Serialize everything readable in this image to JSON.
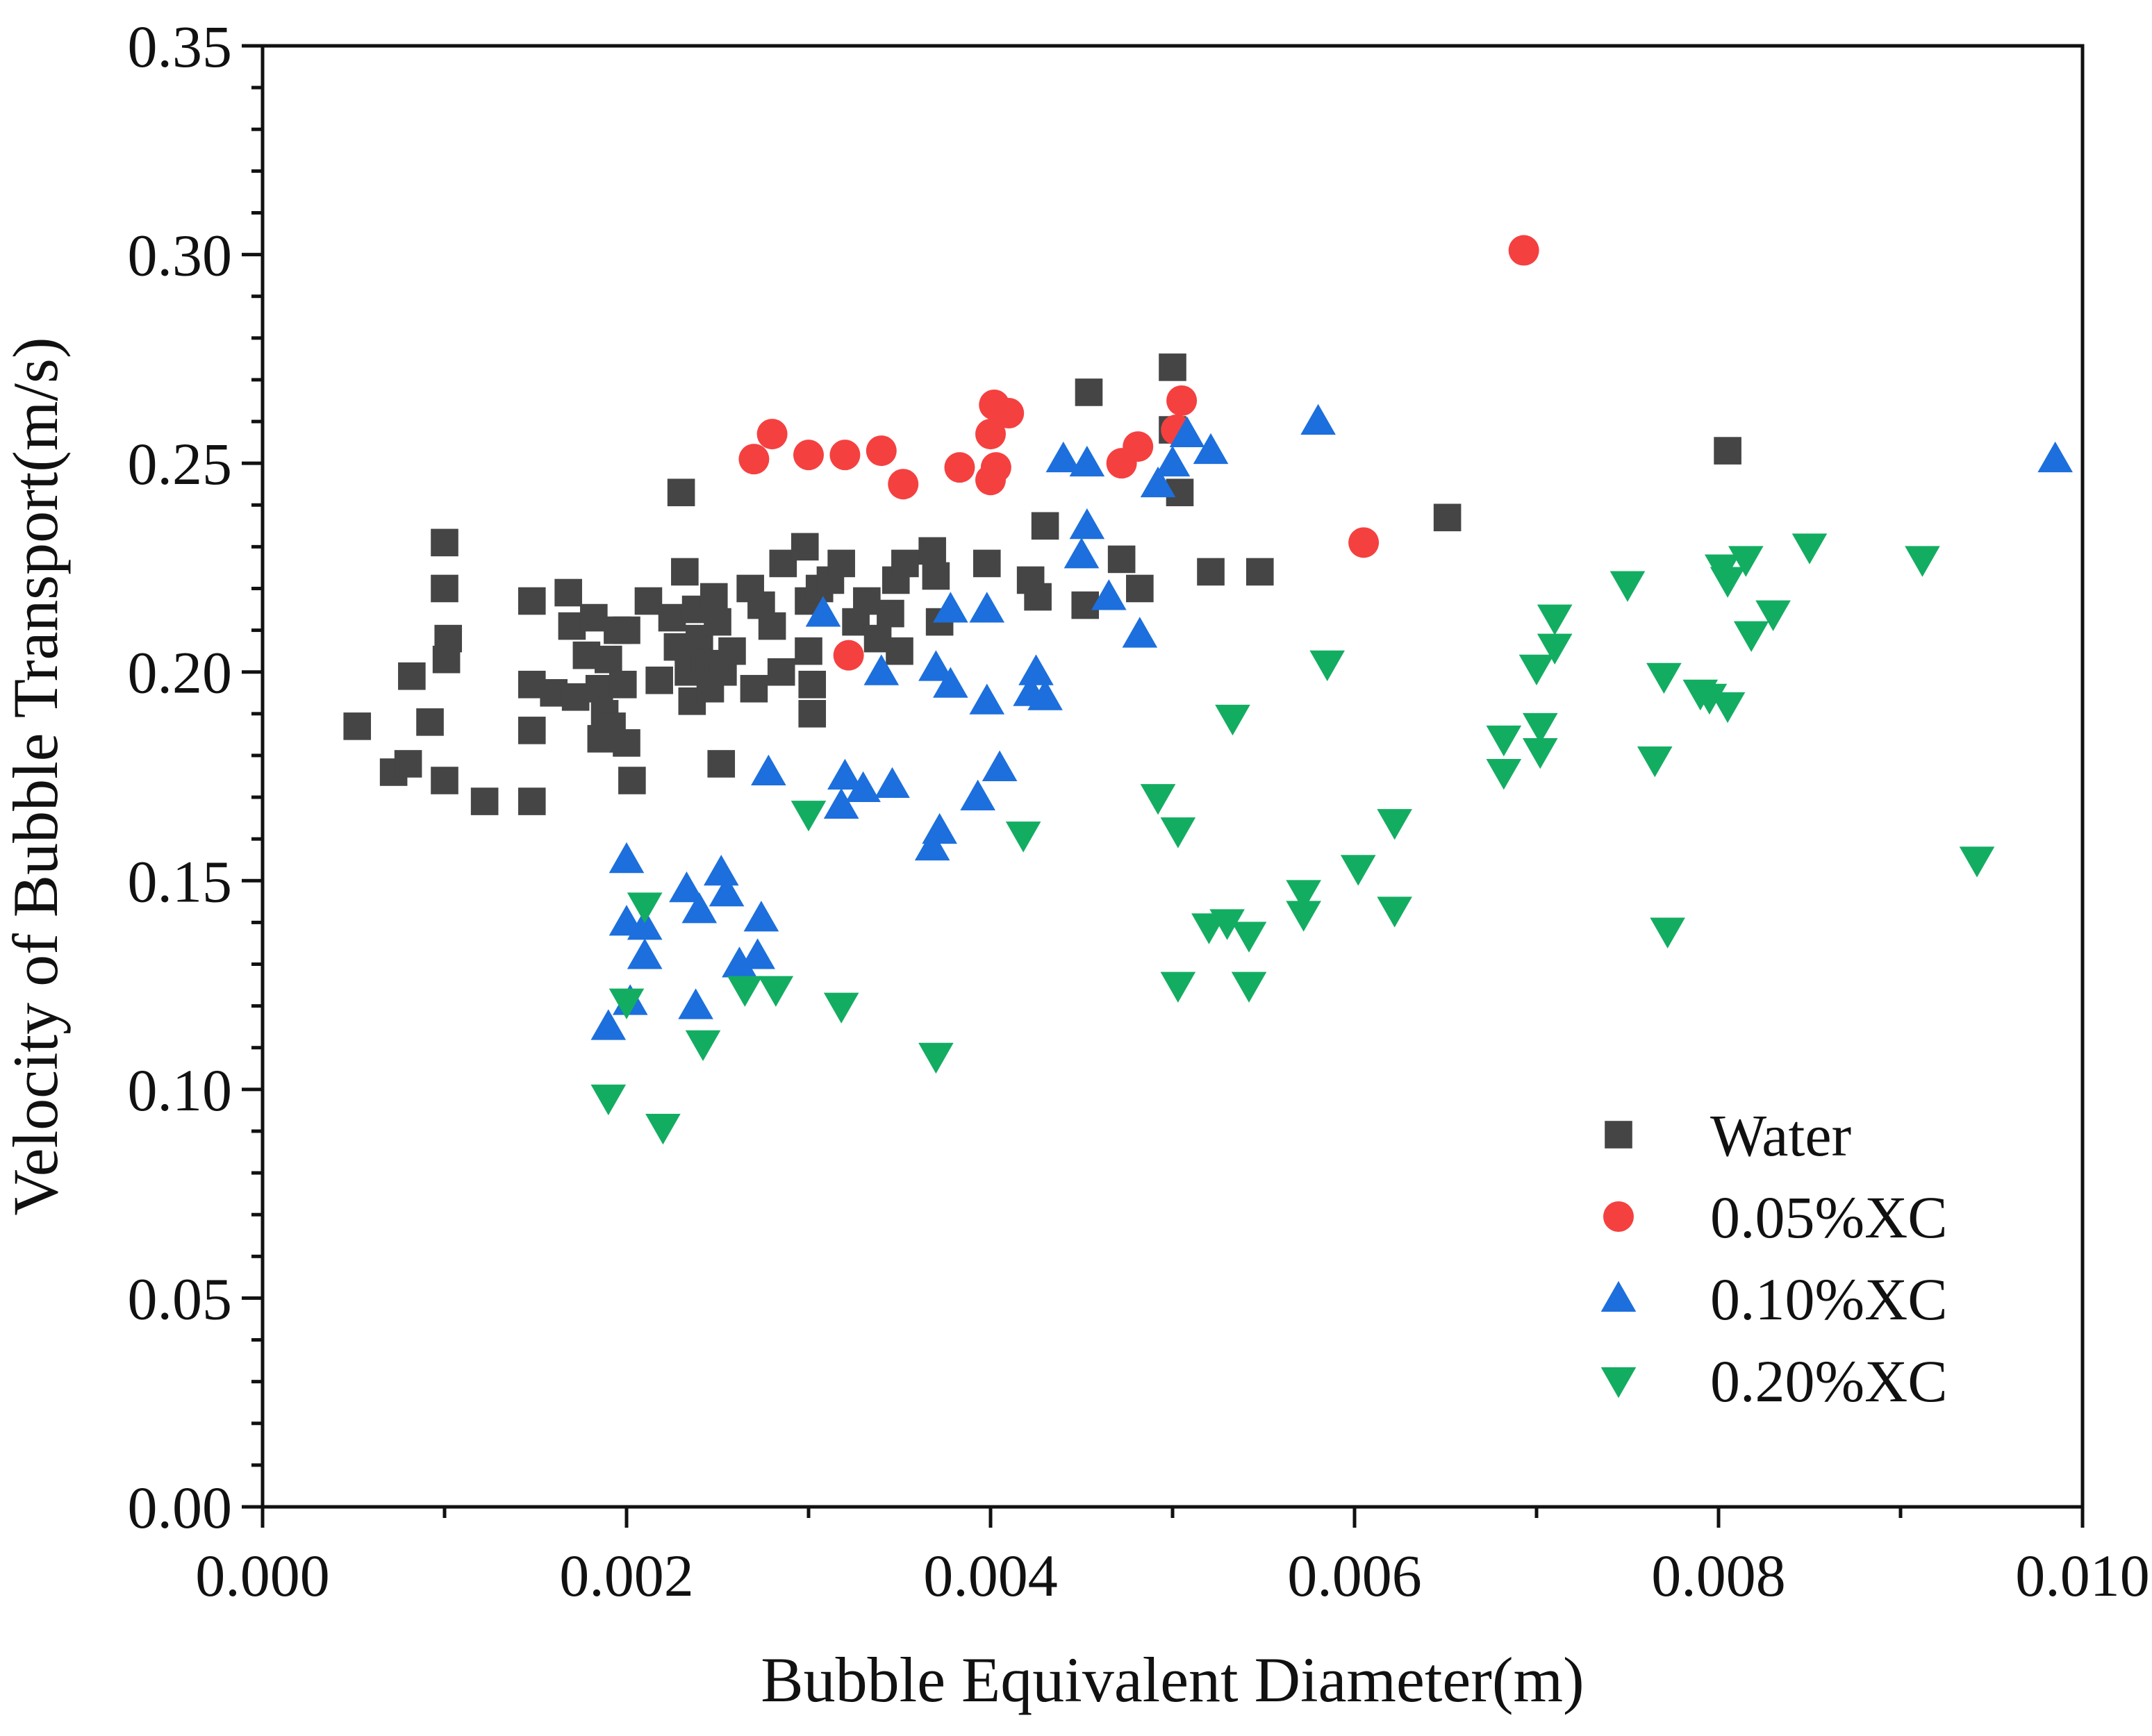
{
  "chart_data": {
    "type": "scatter",
    "xlabel": "Bubble Equivalent Diameter(m)",
    "ylabel": "Velocity of Bubble Transport(m/s)",
    "xlim": [
      0.0,
      0.01
    ],
    "ylim": [
      0.0,
      0.35
    ],
    "x_ticks": [
      "0.000",
      "0.002",
      "0.004",
      "0.006",
      "0.008",
      "0.010"
    ],
    "x_tick_values": [
      0.0,
      0.002,
      0.004,
      0.006,
      0.008,
      0.01
    ],
    "y_ticks": [
      "0.00",
      "0.05",
      "0.10",
      "0.15",
      "0.20",
      "0.25",
      "0.30",
      "0.35"
    ],
    "y_tick_values": [
      0.0,
      0.05,
      0.1,
      0.15,
      0.2,
      0.25,
      0.3,
      0.35
    ],
    "grid": false,
    "legend_position": "bottom-right",
    "series": [
      {
        "name": "Water",
        "marker": "square",
        "color": "#454545",
        "points": [
          [
            0.00052,
            0.187
          ],
          [
            0.00072,
            0.176
          ],
          [
            0.0008,
            0.178
          ],
          [
            0.00082,
            0.199
          ],
          [
            0.00092,
            0.188
          ],
          [
            0.001,
            0.231
          ],
          [
            0.001,
            0.22
          ],
          [
            0.00102,
            0.208
          ],
          [
            0.00101,
            0.203
          ],
          [
            0.001,
            0.174
          ],
          [
            0.00122,
            0.169
          ],
          [
            0.00148,
            0.169
          ],
          [
            0.00148,
            0.217
          ],
          [
            0.00148,
            0.197
          ],
          [
            0.00148,
            0.186
          ],
          [
            0.0016,
            0.195
          ],
          [
            0.00168,
            0.219
          ],
          [
            0.0017,
            0.211
          ],
          [
            0.00172,
            0.194
          ],
          [
            0.00178,
            0.204
          ],
          [
            0.00182,
            0.213
          ],
          [
            0.00185,
            0.196
          ],
          [
            0.00186,
            0.184
          ],
          [
            0.00188,
            0.19
          ],
          [
            0.0019,
            0.203
          ],
          [
            0.00192,
            0.187
          ],
          [
            0.00195,
            0.21
          ],
          [
            0.00198,
            0.197
          ],
          [
            0.002,
            0.183
          ],
          [
            0.002,
            0.21
          ],
          [
            0.00203,
            0.174
          ],
          [
            0.00212,
            0.217
          ],
          [
            0.00218,
            0.198
          ],
          [
            0.00225,
            0.213
          ],
          [
            0.00228,
            0.206
          ],
          [
            0.0023,
            0.243
          ],
          [
            0.00232,
            0.224
          ],
          [
            0.00234,
            0.2
          ],
          [
            0.00236,
            0.193
          ],
          [
            0.00238,
            0.215
          ],
          [
            0.0024,
            0.208
          ],
          [
            0.00243,
            0.202
          ],
          [
            0.00246,
            0.196
          ],
          [
            0.00248,
            0.218
          ],
          [
            0.0025,
            0.212
          ],
          [
            0.00252,
            0.178
          ],
          [
            0.00253,
            0.2
          ],
          [
            0.00258,
            0.205
          ],
          [
            0.00268,
            0.22
          ],
          [
            0.0027,
            0.196
          ],
          [
            0.00274,
            0.216
          ],
          [
            0.0028,
            0.211
          ],
          [
            0.00285,
            0.2
          ],
          [
            0.00286,
            0.226
          ],
          [
            0.00298,
            0.23
          ],
          [
            0.003,
            0.217
          ],
          [
            0.003,
            0.205
          ],
          [
            0.00302,
            0.197
          ],
          [
            0.00302,
            0.19
          ],
          [
            0.00306,
            0.22
          ],
          [
            0.00312,
            0.222
          ],
          [
            0.00318,
            0.226
          ],
          [
            0.00326,
            0.212
          ],
          [
            0.00332,
            0.217
          ],
          [
            0.00338,
            0.208
          ],
          [
            0.00345,
            0.214
          ],
          [
            0.00348,
            0.222
          ],
          [
            0.0035,
            0.205
          ],
          [
            0.00353,
            0.226
          ],
          [
            0.00368,
            0.229
          ],
          [
            0.0037,
            0.223
          ],
          [
            0.00372,
            0.212
          ],
          [
            0.00398,
            0.226
          ],
          [
            0.00422,
            0.222
          ],
          [
            0.00426,
            0.218
          ],
          [
            0.0043,
            0.235
          ],
          [
            0.00452,
            0.216
          ],
          [
            0.00454,
            0.267
          ],
          [
            0.00472,
            0.227
          ],
          [
            0.00482,
            0.22
          ],
          [
            0.005,
            0.273
          ],
          [
            0.005,
            0.258
          ],
          [
            0.00504,
            0.243
          ],
          [
            0.00521,
            0.224
          ],
          [
            0.00548,
            0.224
          ],
          [
            0.00651,
            0.237
          ],
          [
            0.00805,
            0.253
          ]
        ]
      },
      {
        "name": "0.05%XC",
        "marker": "circle",
        "color": "#f54040",
        "points": [
          [
            0.0027,
            0.251
          ],
          [
            0.0028,
            0.257
          ],
          [
            0.003,
            0.252
          ],
          [
            0.0032,
            0.252
          ],
          [
            0.0034,
            0.253
          ],
          [
            0.00352,
            0.245
          ],
          [
            0.00383,
            0.249
          ],
          [
            0.004,
            0.257
          ],
          [
            0.004,
            0.246
          ],
          [
            0.00403,
            0.249
          ],
          [
            0.00402,
            0.264
          ],
          [
            0.0041,
            0.262
          ],
          [
            0.00472,
            0.25
          ],
          [
            0.00481,
            0.254
          ],
          [
            0.00502,
            0.258
          ],
          [
            0.00505,
            0.265
          ],
          [
            0.00322,
            0.204
          ],
          [
            0.00605,
            0.231
          ],
          [
            0.00693,
            0.301
          ]
        ]
      },
      {
        "name": "0.10%XC",
        "marker": "triangle-up",
        "color": "#1c6fdc",
        "points": [
          [
            0.0019,
            0.115
          ],
          [
            0.002,
            0.155
          ],
          [
            0.002,
            0.14
          ],
          [
            0.00202,
            0.121
          ],
          [
            0.0021,
            0.132
          ],
          [
            0.0021,
            0.139
          ],
          [
            0.00233,
            0.148
          ],
          [
            0.00238,
            0.12
          ],
          [
            0.0024,
            0.143
          ],
          [
            0.00252,
            0.152
          ],
          [
            0.00255,
            0.147
          ],
          [
            0.00262,
            0.13
          ],
          [
            0.00272,
            0.132
          ],
          [
            0.00274,
            0.141
          ],
          [
            0.00278,
            0.176
          ],
          [
            0.00308,
            0.214
          ],
          [
            0.00318,
            0.168
          ],
          [
            0.0032,
            0.175
          ],
          [
            0.0033,
            0.172
          ],
          [
            0.0034,
            0.2
          ],
          [
            0.00346,
            0.173
          ],
          [
            0.00368,
            0.158
          ],
          [
            0.00372,
            0.162
          ],
          [
            0.0037,
            0.201
          ],
          [
            0.00378,
            0.197
          ],
          [
            0.00378,
            0.215
          ],
          [
            0.00393,
            0.17
          ],
          [
            0.00398,
            0.193
          ],
          [
            0.00398,
            0.215
          ],
          [
            0.00405,
            0.177
          ],
          [
            0.00422,
            0.195
          ],
          [
            0.00425,
            0.2
          ],
          [
            0.0043,
            0.194
          ],
          [
            0.0044,
            0.251
          ],
          [
            0.0045,
            0.228
          ],
          [
            0.00453,
            0.235
          ],
          [
            0.00453,
            0.25
          ],
          [
            0.00465,
            0.218
          ],
          [
            0.00482,
            0.209
          ],
          [
            0.00492,
            0.245
          ],
          [
            0.005,
            0.25
          ],
          [
            0.00508,
            0.257
          ],
          [
            0.00521,
            0.253
          ],
          [
            0.0058,
            0.26
          ],
          [
            0.00985,
            0.251
          ]
        ]
      },
      {
        "name": "0.20%XC",
        "marker": "triangle-down",
        "color": "#13ad62",
        "points": [
          [
            0.0019,
            0.098
          ],
          [
            0.002,
            0.121
          ],
          [
            0.0021,
            0.144
          ],
          [
            0.0022,
            0.091
          ],
          [
            0.00242,
            0.111
          ],
          [
            0.00265,
            0.124
          ],
          [
            0.00282,
            0.124
          ],
          [
            0.003,
            0.166
          ],
          [
            0.00318,
            0.12
          ],
          [
            0.0037,
            0.108
          ],
          [
            0.00418,
            0.161
          ],
          [
            0.00492,
            0.17
          ],
          [
            0.00503,
            0.162
          ],
          [
            0.00503,
            0.125
          ],
          [
            0.0052,
            0.139
          ],
          [
            0.0053,
            0.14
          ],
          [
            0.00533,
            0.189
          ],
          [
            0.00542,
            0.137
          ],
          [
            0.00542,
            0.125
          ],
          [
            0.00572,
            0.147
          ],
          [
            0.00572,
            0.142
          ],
          [
            0.00585,
            0.202
          ],
          [
            0.00602,
            0.153
          ],
          [
            0.00622,
            0.164
          ],
          [
            0.00622,
            0.143
          ],
          [
            0.00682,
            0.176
          ],
          [
            0.00682,
            0.184
          ],
          [
            0.007,
            0.201
          ],
          [
            0.00702,
            0.181
          ],
          [
            0.00702,
            0.187
          ],
          [
            0.0071,
            0.206
          ],
          [
            0.0071,
            0.213
          ],
          [
            0.0075,
            0.221
          ],
          [
            0.00765,
            0.179
          ],
          [
            0.0077,
            0.199
          ],
          [
            0.00772,
            0.138
          ],
          [
            0.0079,
            0.195
          ],
          [
            0.00795,
            0.194
          ],
          [
            0.00802,
            0.225
          ],
          [
            0.00805,
            0.192
          ],
          [
            0.00805,
            0.222
          ],
          [
            0.00815,
            0.227
          ],
          [
            0.00818,
            0.209
          ],
          [
            0.0083,
            0.214
          ],
          [
            0.0085,
            0.23
          ],
          [
            0.00912,
            0.227
          ],
          [
            0.00942,
            0.155
          ]
        ]
      }
    ]
  }
}
